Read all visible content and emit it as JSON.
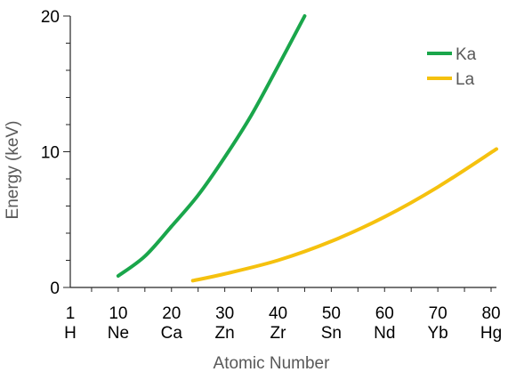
{
  "chart_data": {
    "type": "line",
    "xlabel": "Atomic Number",
    "ylabel": "Energy (keV)",
    "xlim": [
      1,
      81
    ],
    "ylim": [
      0,
      20
    ],
    "y_ticks": [
      "0",
      "10",
      "20"
    ],
    "x_ticks": [
      {
        "x": 1,
        "number": "1",
        "element": "H"
      },
      {
        "x": 10,
        "number": "10",
        "element": "Ne"
      },
      {
        "x": 20,
        "number": "20",
        "element": "Ca"
      },
      {
        "x": 30,
        "number": "30",
        "element": "Zn"
      },
      {
        "x": 40,
        "number": "40",
        "element": "Zr"
      },
      {
        "x": 50,
        "number": "50",
        "element": "Sn"
      },
      {
        "x": 60,
        "number": "60",
        "element": "Nd"
      },
      {
        "x": 70,
        "number": "70",
        "element": "Yb"
      },
      {
        "x": 80,
        "number": "80",
        "element": "Hg"
      }
    ],
    "grid": false,
    "legend_position": "top-right",
    "series": [
      {
        "name": "Ka",
        "color": "#1aa64b",
        "x": [
          10,
          15,
          20,
          25,
          30,
          35,
          40,
          45
        ],
        "y": [
          0.85,
          2.3,
          4.5,
          6.8,
          9.6,
          12.7,
          16.3,
          20.0
        ]
      },
      {
        "name": "La",
        "color": "#f5c10e",
        "x": [
          24,
          30,
          40,
          50,
          60,
          70,
          81
        ],
        "y": [
          0.5,
          1.0,
          2.0,
          3.4,
          5.2,
          7.4,
          10.2
        ]
      }
    ]
  }
}
